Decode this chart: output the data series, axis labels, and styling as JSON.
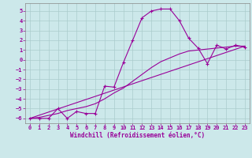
{
  "title": "",
  "xlabel": "Windchill (Refroidissement éolien,°C)",
  "ylabel": "",
  "bg_color": "#cce8ea",
  "line_color": "#990099",
  "grid_color": "#aacccc",
  "xlim": [
    -0.5,
    23.5
  ],
  "ylim": [
    -6.5,
    5.8
  ],
  "xticks": [
    0,
    1,
    2,
    3,
    4,
    5,
    6,
    7,
    8,
    9,
    10,
    11,
    12,
    13,
    14,
    15,
    16,
    17,
    18,
    19,
    20,
    21,
    22,
    23
  ],
  "yticks": [
    -6,
    -5,
    -4,
    -3,
    -2,
    -1,
    0,
    1,
    2,
    3,
    4,
    5
  ],
  "line1_x": [
    0,
    1,
    2,
    3,
    4,
    5,
    6,
    7,
    8,
    9,
    10,
    11,
    12,
    13,
    14,
    15,
    16,
    17,
    18,
    19,
    20,
    21,
    22,
    23
  ],
  "line1_y": [
    -6.0,
    -6.0,
    -6.0,
    -5.0,
    -6.0,
    -5.3,
    -5.5,
    -5.5,
    -2.7,
    -2.8,
    -0.3,
    2.0,
    4.3,
    5.0,
    5.2,
    5.2,
    4.0,
    2.2,
    1.2,
    -0.4,
    1.5,
    1.1,
    1.5,
    1.3
  ],
  "line2_x": [
    0,
    23
  ],
  "line2_y": [
    -6.0,
    1.4
  ],
  "line3_x": [
    0,
    1,
    2,
    3,
    4,
    5,
    6,
    7,
    8,
    9,
    10,
    11,
    12,
    13,
    14,
    15,
    16,
    17,
    18,
    19,
    20,
    21,
    22,
    23
  ],
  "line3_y": [
    -6.0,
    -5.9,
    -5.7,
    -5.5,
    -5.2,
    -5.0,
    -4.8,
    -4.5,
    -4.0,
    -3.4,
    -2.9,
    -2.2,
    -1.5,
    -0.8,
    -0.2,
    0.2,
    0.6,
    0.9,
    1.0,
    1.1,
    1.2,
    1.3,
    1.4,
    1.4
  ]
}
